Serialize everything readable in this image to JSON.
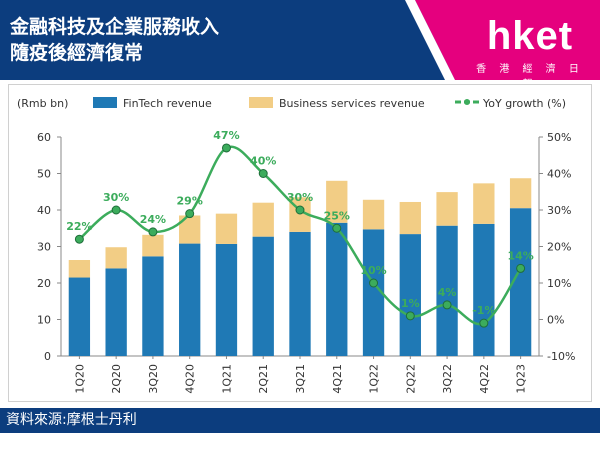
{
  "header": {
    "title_line1": "金融科技及企業服務收入",
    "title_line2": "隨疫後經濟復常",
    "logo_text": "hket",
    "logo_sub": "香 港 經 濟 日 報",
    "band_color": "#0c3d7e",
    "logo_color": "#e5007e"
  },
  "footer": {
    "source": "資料來源:摩根士丹利"
  },
  "chart_data": {
    "type": "bar",
    "stacked": true,
    "categories": [
      "1Q20",
      "2Q20",
      "3Q20",
      "4Q20",
      "1Q21",
      "2Q21",
      "3Q21",
      "4Q21",
      "1Q22",
      "2Q22",
      "3Q22",
      "4Q22",
      "1Q23"
    ],
    "series": [
      {
        "name": "FinTech revenue",
        "color": "#1f79b5",
        "values": [
          21.5,
          24,
          27.3,
          30.8,
          30.7,
          32.7,
          34,
          36.5,
          34.7,
          33.4,
          35.7,
          36.2,
          40.5
        ]
      },
      {
        "name": "Business services revenue",
        "color": "#f2cd85",
        "values": [
          4.8,
          5.8,
          5.9,
          7.7,
          8.3,
          9.3,
          9.5,
          11.5,
          8.1,
          8.8,
          9.2,
          11.1,
          8.2
        ]
      },
      {
        "name": "YoY growth (%)",
        "color": "#3cac5c",
        "axis": "right",
        "values": [
          22,
          30,
          24,
          29,
          47,
          40,
          30,
          25,
          10,
          1,
          4,
          -1,
          14
        ],
        "labels": [
          "22%",
          "30%",
          "24%",
          "29%",
          "47%",
          "40%",
          "30%",
          "25%",
          "10%",
          "1%",
          "4%",
          "-1%",
          "14%"
        ]
      }
    ],
    "ylabel": "(Rmb bn)",
    "ylim": [
      0,
      60
    ],
    "yticks": [
      0,
      10,
      20,
      30,
      40,
      50,
      60
    ],
    "y2lim": [
      -10,
      50
    ],
    "y2ticks": [
      "-10%",
      "0%",
      "10%",
      "20%",
      "30%",
      "40%",
      "50%"
    ],
    "legend": "top",
    "grid": false
  }
}
